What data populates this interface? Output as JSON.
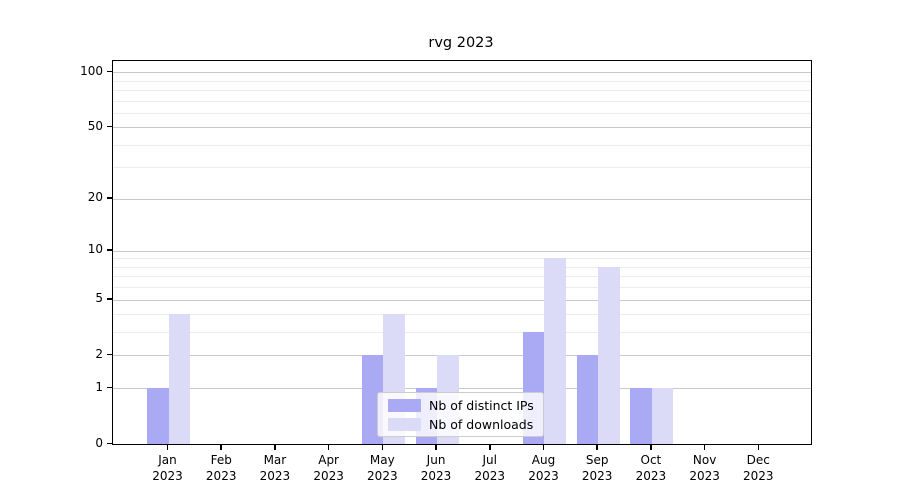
{
  "title": "rvg 2023",
  "chart_data": {
    "type": "bar",
    "title": "rvg 2023",
    "categories": [
      "Jan",
      "Feb",
      "Mar",
      "Apr",
      "May",
      "Jun",
      "Jul",
      "Aug",
      "Sep",
      "Oct",
      "Nov",
      "Dec"
    ],
    "year_label": "2023",
    "series": [
      {
        "name": "Nb of distinct IPs",
        "color": "#a9a9f4",
        "values": [
          1,
          0,
          0,
          0,
          2,
          1,
          0,
          3,
          2,
          1,
          0,
          0
        ]
      },
      {
        "name": "Nb of downloads",
        "color": "#dbdbf8",
        "values": [
          4,
          0,
          0,
          0,
          4,
          2,
          0,
          9,
          8,
          1,
          0,
          0
        ]
      }
    ],
    "xlabel": "",
    "ylabel": "",
    "y_axis": {
      "scale": "log10(1+y)",
      "major_ticks": [
        0,
        1,
        2,
        5,
        10,
        20,
        50,
        100
      ],
      "minor_gridlines": [
        3,
        4,
        6,
        7,
        8,
        9,
        30,
        40,
        60,
        70,
        80,
        90
      ],
      "ylim": [
        0,
        115
      ]
    },
    "grid": "on",
    "legend": {
      "position": "lower center",
      "entries": [
        "Nb of distinct IPs",
        "Nb of downloads"
      ]
    },
    "colors": {
      "grid_major": "#c9c9c9",
      "grid_minor": "#ececec",
      "spine": "#000000",
      "legend_border": "#cccccc"
    }
  }
}
